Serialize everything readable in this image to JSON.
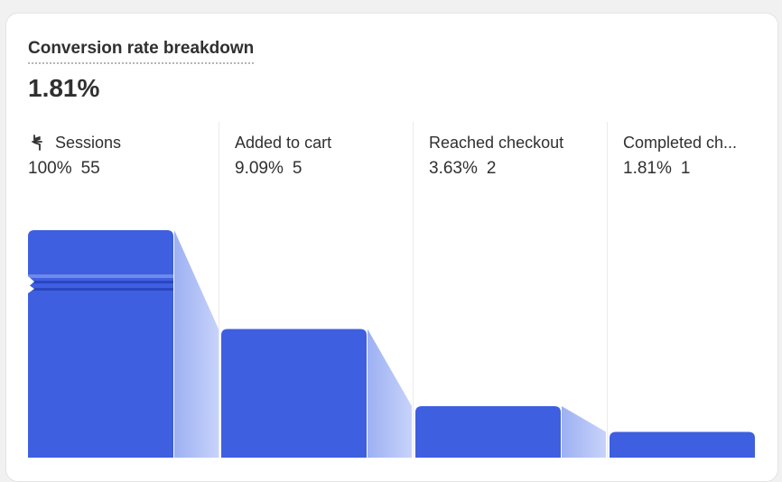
{
  "card": {
    "title": "Conversion rate breakdown",
    "conversion_rate": "1.81%"
  },
  "steps": [
    {
      "label": "Sessions",
      "percent": "100%",
      "count": "55",
      "icon": "sessions-icon"
    },
    {
      "label": "Added to cart",
      "percent": "9.09%",
      "count": "5"
    },
    {
      "label": "Reached checkout",
      "percent": "3.63%",
      "count": "2"
    },
    {
      "label": "Completed ch...",
      "percent": "1.81%",
      "count": "1"
    }
  ],
  "chart_data": {
    "type": "bar",
    "categories": [
      "Sessions",
      "Added to cart",
      "Reached checkout",
      "Completed ch..."
    ],
    "values": [
      55,
      5,
      2,
      1
    ],
    "percentages": [
      100,
      9.09,
      3.63,
      1.81
    ],
    "axis_break": true
  },
  "colors": {
    "bar": "#3e5fe0",
    "connector_start": "#9db0f2",
    "connector_end": "#c7d3fa",
    "break_line": "#6f8ae8"
  }
}
